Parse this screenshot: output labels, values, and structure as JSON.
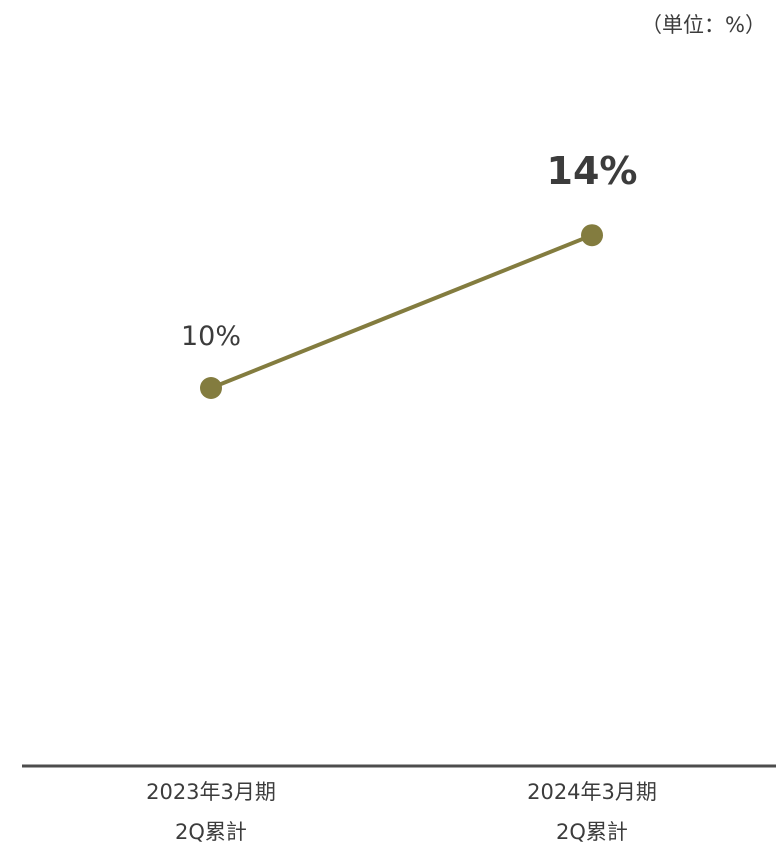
{
  "chart_data": {
    "type": "line",
    "unit_note": "（単位：%）",
    "categories": [
      {
        "line1": "2023年3月期",
        "line2": "2Q累計"
      },
      {
        "line1": "2024年3月期",
        "line2": "2Q累計"
      }
    ],
    "series": [
      {
        "values": [
          10,
          14
        ],
        "data_labels": [
          "10%",
          "14%"
        ],
        "emphasized": [
          false,
          true
        ]
      }
    ],
    "ylim": [
      0,
      20
    ],
    "grid": false,
    "legend": "none",
    "colors": {
      "line": "#837c3f",
      "axis": "#4d4d4d",
      "text": "#3c3c3c"
    }
  }
}
